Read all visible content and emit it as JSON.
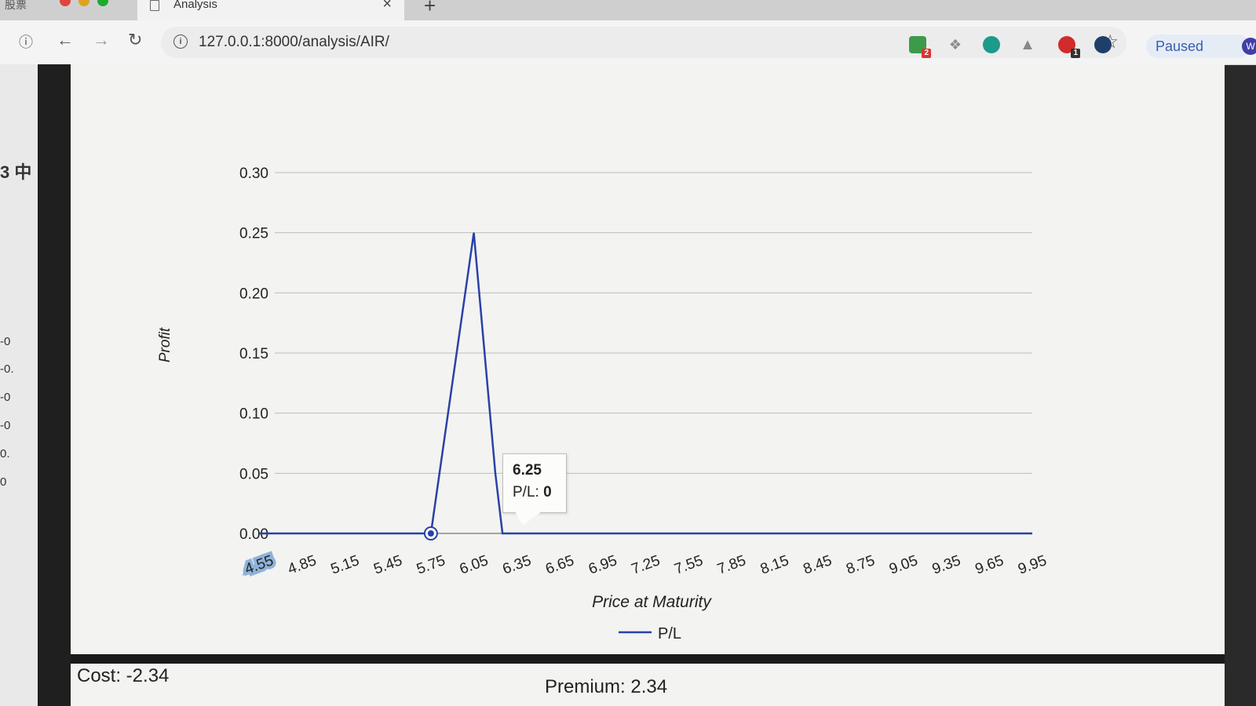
{
  "browser": {
    "left_tab_fragment": "股票",
    "tab_title": "Analysis",
    "url": "127.0.0.1:8000/analysis/AIR/",
    "extension_badges": [
      "2",
      "1"
    ],
    "profile_label": "Paused",
    "profile_initial": "W"
  },
  "background_window": {
    "fragments": [
      "3 中",
      "-0",
      "-0.",
      "-0",
      "-0",
      "0.",
      "0"
    ]
  },
  "chart_data": {
    "type": "line",
    "xlabel": "Price at Maturity",
    "ylabel": "Profit",
    "categories": [
      "4.55",
      "4.85",
      "5.15",
      "5.45",
      "5.75",
      "6.05",
      "6.35",
      "6.65",
      "6.95",
      "7.25",
      "7.55",
      "7.85",
      "8.15",
      "8.45",
      "8.75",
      "9.05",
      "9.35",
      "9.65",
      "9.95"
    ],
    "yticks": [
      "0.30",
      "0.25",
      "0.20",
      "0.15",
      "0.10",
      "0.05",
      "0.00"
    ],
    "ylim": [
      0,
      0.3
    ],
    "xlim": [
      4.55,
      9.95
    ],
    "series": [
      {
        "name": "P/L",
        "color": "#2941a8",
        "points": [
          [
            4.55,
            0
          ],
          [
            5.75,
            0
          ],
          [
            6.05,
            0.25
          ],
          [
            6.2,
            0.05
          ],
          [
            6.25,
            0
          ],
          [
            9.95,
            0
          ]
        ]
      }
    ],
    "legend": "bottom-center",
    "grid": "horizontal",
    "highlighted_point": [
      5.75,
      0
    ]
  },
  "tooltip": {
    "title": "6.25",
    "label": "P/L:",
    "value": "0"
  },
  "footer": {
    "cost": "Cost: -2.34",
    "premium": "Premium: 2.34"
  }
}
